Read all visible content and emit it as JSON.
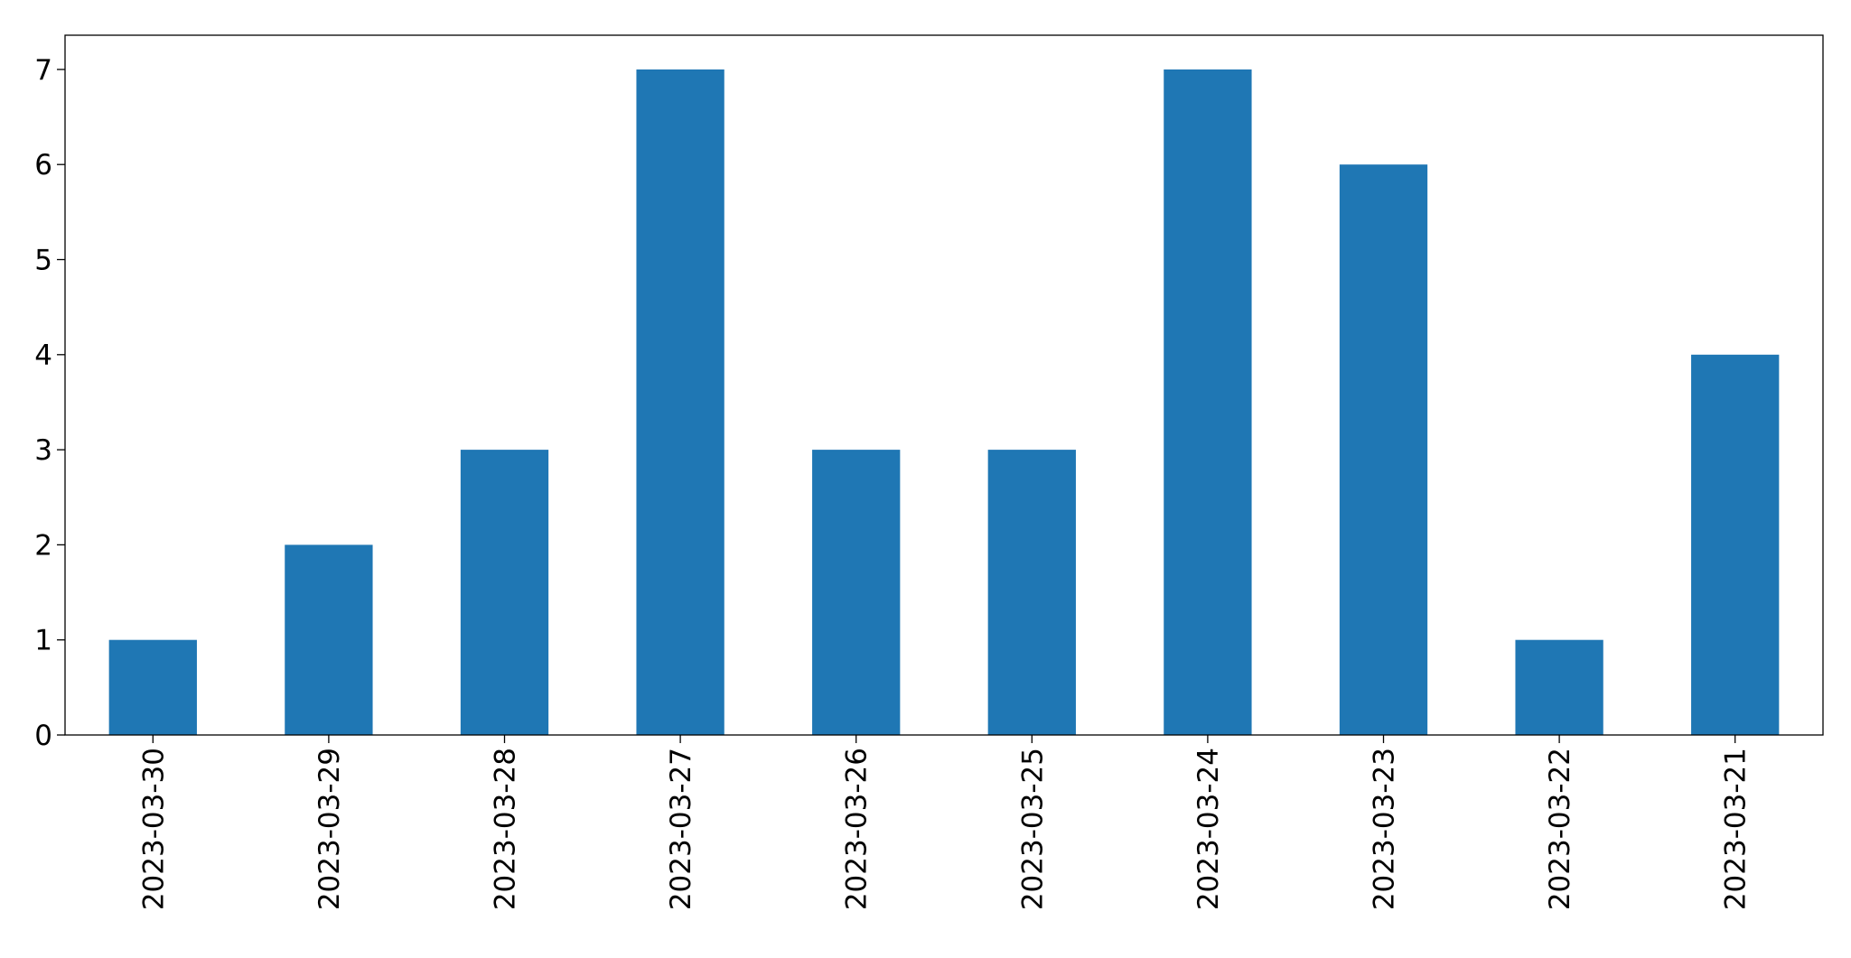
{
  "chart_data": {
    "type": "bar",
    "categories": [
      "2023-03-30",
      "2023-03-29",
      "2023-03-28",
      "2023-03-27",
      "2023-03-26",
      "2023-03-25",
      "2023-03-24",
      "2023-03-23",
      "2023-03-22",
      "2023-03-21"
    ],
    "values": [
      1,
      2,
      3,
      7,
      3,
      3,
      7,
      6,
      1,
      4
    ],
    "color": "#1f77b4",
    "ylim": [
      0,
      7.36
    ],
    "yticks": [
      0,
      1,
      2,
      3,
      4,
      5,
      6,
      7
    ],
    "grid": false
  }
}
